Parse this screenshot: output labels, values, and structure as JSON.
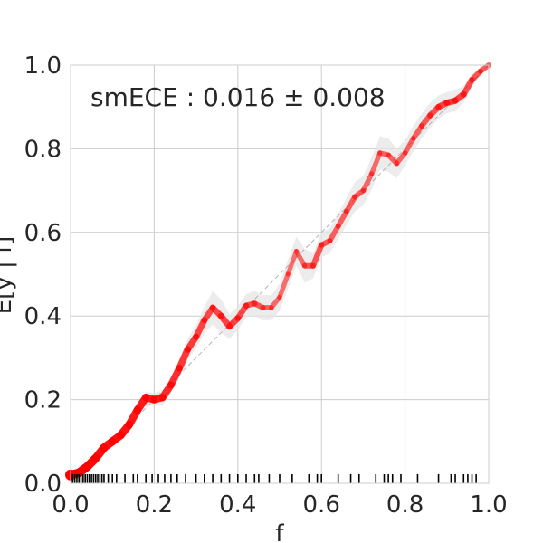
{
  "chart_data": {
    "type": "line",
    "title": "",
    "xlabel": "f",
    "ylabel": "E[y | f]",
    "xlim": [
      0,
      1
    ],
    "ylim": [
      0,
      1
    ],
    "xticks": [
      "0.0",
      "0.2",
      "0.4",
      "0.6",
      "0.8",
      "1.0"
    ],
    "yticks": [
      "0.0",
      "0.2",
      "0.4",
      "0.6",
      "0.8",
      "1.0"
    ],
    "grid": true,
    "annotation": "smECE : 0.016 ± 0.008",
    "colors": {
      "curve": "#ff0000",
      "band": "#e6e6e6",
      "diagonal": "#b3b3b3",
      "rug": "#000000"
    },
    "series": [
      {
        "x": [
          0.0,
          0.02,
          0.04,
          0.06,
          0.08,
          0.1,
          0.12,
          0.14,
          0.16,
          0.18,
          0.2,
          0.22,
          0.24,
          0.26,
          0.28,
          0.3,
          0.32,
          0.34,
          0.36,
          0.38,
          0.4,
          0.42,
          0.44,
          0.46,
          0.48,
          0.5,
          0.52,
          0.54,
          0.56,
          0.58,
          0.6,
          0.62,
          0.64,
          0.66,
          0.68,
          0.7,
          0.72,
          0.74,
          0.76,
          0.78,
          0.8,
          0.82,
          0.84,
          0.86,
          0.88,
          0.9,
          0.92,
          0.94,
          0.96,
          0.98,
          1.0
        ],
        "y": [
          0.02,
          0.025,
          0.04,
          0.06,
          0.085,
          0.1,
          0.115,
          0.14,
          0.175,
          0.205,
          0.2,
          0.205,
          0.235,
          0.275,
          0.32,
          0.35,
          0.39,
          0.42,
          0.4,
          0.375,
          0.395,
          0.425,
          0.43,
          0.42,
          0.42,
          0.445,
          0.5,
          0.555,
          0.52,
          0.52,
          0.57,
          0.58,
          0.615,
          0.65,
          0.685,
          0.7,
          0.74,
          0.79,
          0.785,
          0.765,
          0.79,
          0.825,
          0.855,
          0.88,
          0.9,
          0.91,
          0.915,
          0.93,
          0.965,
          0.985,
          1.0
        ],
        "band_halfwidth": [
          0.004,
          0.004,
          0.005,
          0.006,
          0.007,
          0.008,
          0.009,
          0.01,
          0.012,
          0.015,
          0.015,
          0.018,
          0.02,
          0.022,
          0.025,
          0.028,
          0.032,
          0.04,
          0.04,
          0.03,
          0.028,
          0.028,
          0.03,
          0.03,
          0.03,
          0.032,
          0.035,
          0.035,
          0.04,
          0.03,
          0.03,
          0.03,
          0.03,
          0.032,
          0.035,
          0.035,
          0.038,
          0.04,
          0.04,
          0.035,
          0.03,
          0.03,
          0.03,
          0.03,
          0.028,
          0.025,
          0.025,
          0.02,
          0.015,
          0.008,
          0.004
        ],
        "weight": [
          1.0,
          1.0,
          1.0,
          0.95,
          0.92,
          0.9,
          0.9,
          0.88,
          0.85,
          0.85,
          0.8,
          0.8,
          0.75,
          0.72,
          0.68,
          0.65,
          0.6,
          0.6,
          0.62,
          0.65,
          0.6,
          0.55,
          0.52,
          0.48,
          0.42,
          0.4,
          0.38,
          0.36,
          0.45,
          0.55,
          0.52,
          0.48,
          0.45,
          0.48,
          0.5,
          0.45,
          0.4,
          0.42,
          0.45,
          0.45,
          0.42,
          0.45,
          0.48,
          0.55,
          0.6,
          0.62,
          0.65,
          0.6,
          0.55,
          0.5,
          0.45
        ]
      }
    ],
    "rug": [
      0.005,
      0.01,
      0.015,
      0.02,
      0.025,
      0.03,
      0.035,
      0.04,
      0.045,
      0.05,
      0.055,
      0.06,
      0.065,
      0.07,
      0.075,
      0.08,
      0.09,
      0.1,
      0.11,
      0.13,
      0.15,
      0.16,
      0.18,
      0.195,
      0.21,
      0.225,
      0.24,
      0.255,
      0.275,
      0.3,
      0.32,
      0.34,
      0.36,
      0.38,
      0.4,
      0.42,
      0.44,
      0.45,
      0.475,
      0.5,
      0.53,
      0.57,
      0.59,
      0.6,
      0.64,
      0.67,
      0.69,
      0.73,
      0.75,
      0.76,
      0.77,
      0.79,
      0.83,
      0.88,
      0.91,
      0.92,
      0.94,
      0.95,
      0.96,
      0.97
    ]
  }
}
